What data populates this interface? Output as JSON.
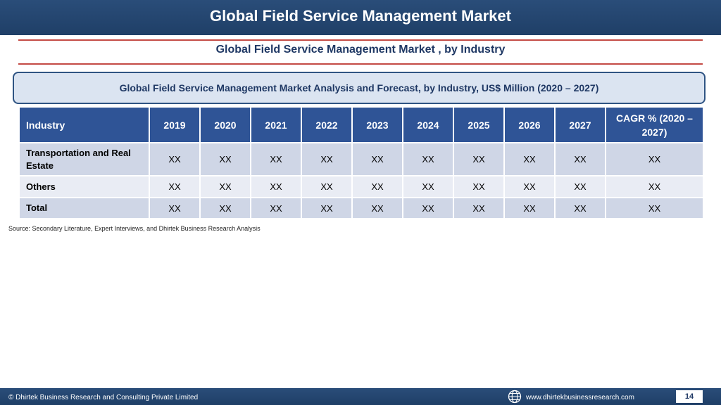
{
  "header": {
    "title": "Global Field Service Management Market"
  },
  "subtitle": "Global Field Service Management Market , by Industry",
  "analysis_title": "Global Field Service Management Market  Analysis and Forecast, by Industry, US$ Million (2020 – 2027)",
  "table": {
    "headers": [
      "Industry",
      "2019",
      "2020",
      "2021",
      "2022",
      "2023",
      "2024",
      "2025",
      "2026",
      "2027",
      "CAGR % (2020 – 2027)"
    ],
    "rows": [
      {
        "label": "Transportation and Real Estate",
        "values": [
          "XX",
          "XX",
          "XX",
          "XX",
          "XX",
          "XX",
          "XX",
          "XX",
          "XX",
          "XX"
        ]
      },
      {
        "label": "Others",
        "values": [
          "XX",
          "XX",
          "XX",
          "XX",
          "XX",
          "XX",
          "XX",
          "XX",
          "XX",
          "XX"
        ]
      },
      {
        "label": "Total",
        "values": [
          "XX",
          "XX",
          "XX",
          "XX",
          "XX",
          "XX",
          "XX",
          "XX",
          "XX",
          "XX"
        ]
      }
    ]
  },
  "source": "Source: Secondary Literature, Expert Interviews, and Dhirtek Business Research Analysis",
  "footer": {
    "copyright": "© Dhirtek Business Research and Consulting Private Limited",
    "website": "www.dhirtekbusinessresearch.com",
    "page_number": "14",
    "globe_icon": "globe-icon"
  },
  "colors": {
    "banner": "#1f3f67",
    "accent_rule": "#c44b45",
    "table_header": "#2f5496",
    "row_dark": "#cfd6e6",
    "row_light": "#e9ecf4"
  }
}
